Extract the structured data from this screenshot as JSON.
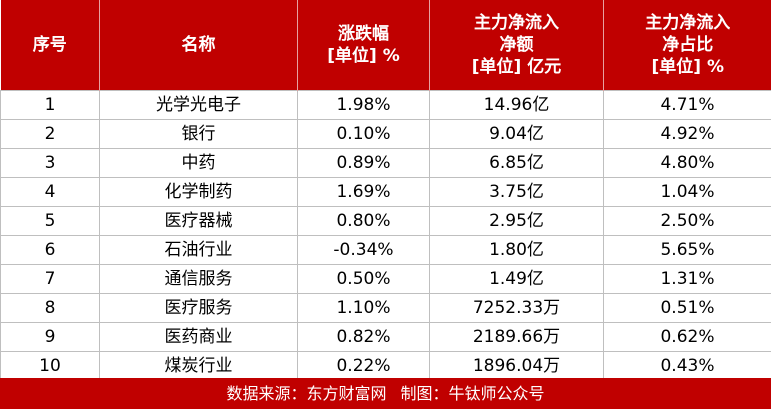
{
  "header": {
    "rank": "序号",
    "name": "名称",
    "change": [
      "涨跌幅",
      "[单位] %"
    ],
    "net_inflow": [
      "主力净流入",
      "净额",
      "[单位] 亿元"
    ],
    "net_ratio": [
      "主力净流入",
      "净占比",
      "[单位] %"
    ]
  },
  "rows": [
    {
      "rank": "1",
      "name": "光学光电子",
      "change": "1.98%",
      "net_inflow": "14.96亿",
      "net_ratio": "4.71%"
    },
    {
      "rank": "2",
      "name": "银行",
      "change": "0.10%",
      "net_inflow": "9.04亿",
      "net_ratio": "4.92%"
    },
    {
      "rank": "3",
      "name": "中药",
      "change": "0.89%",
      "net_inflow": "6.85亿",
      "net_ratio": "4.80%"
    },
    {
      "rank": "4",
      "name": "化学制药",
      "change": "1.69%",
      "net_inflow": "3.75亿",
      "net_ratio": "1.04%"
    },
    {
      "rank": "5",
      "name": "医疗器械",
      "change": "0.80%",
      "net_inflow": "2.95亿",
      "net_ratio": "2.50%"
    },
    {
      "rank": "6",
      "name": "石油行业",
      "change": "-0.34%",
      "net_inflow": "1.80亿",
      "net_ratio": "5.65%"
    },
    {
      "rank": "7",
      "name": "通信服务",
      "change": "0.50%",
      "net_inflow": "1.49亿",
      "net_ratio": "1.31%"
    },
    {
      "rank": "8",
      "name": "医疗服务",
      "change": "1.10%",
      "net_inflow": "7252.33万",
      "net_ratio": "0.51%"
    },
    {
      "rank": "9",
      "name": "医药商业",
      "change": "0.82%",
      "net_inflow": "2189.66万",
      "net_ratio": "0.62%"
    },
    {
      "rank": "10",
      "name": "煤炭行业",
      "change": "0.22%",
      "net_inflow": "1896.04万",
      "net_ratio": "0.43%"
    }
  ],
  "footer": {
    "source": "数据来源：东方财富网",
    "author": "制图：牛钛师公众号"
  },
  "colors": {
    "header_bg": "#c00000",
    "header_text": "#ffffff",
    "grid": "#bfbfbf"
  }
}
